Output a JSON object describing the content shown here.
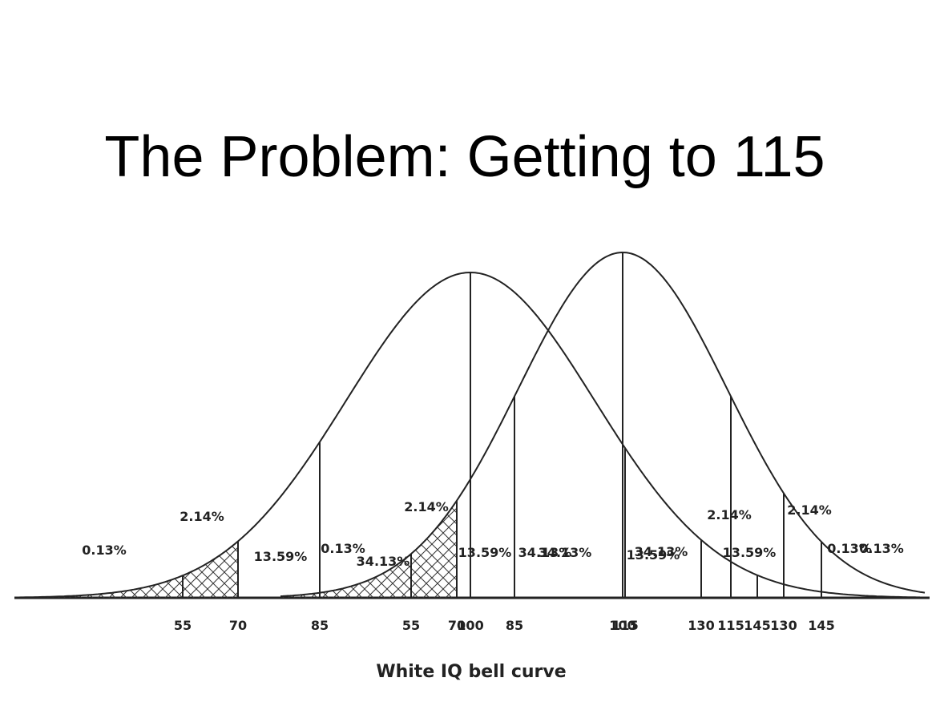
{
  "title": "The Problem: Getting to 115",
  "caption": "White IQ bell curve",
  "curves": [
    {
      "percent_labels": [
        "0.13%",
        "2.14%",
        "13.59%",
        "34.13%",
        "34.13%",
        "13.59%",
        "2.14%",
        "0.13%"
      ],
      "axis_labels": [
        55,
        70,
        85,
        100,
        115,
        130,
        145
      ]
    },
    {
      "percent_labels": [
        "0.13%",
        "2.14%",
        "13.59%",
        "34.13%",
        "34.13%",
        "13.59%",
        "2.14%",
        "0.13%"
      ],
      "axis_labels": [
        55,
        70,
        85,
        100,
        115,
        130,
        145
      ]
    }
  ]
}
